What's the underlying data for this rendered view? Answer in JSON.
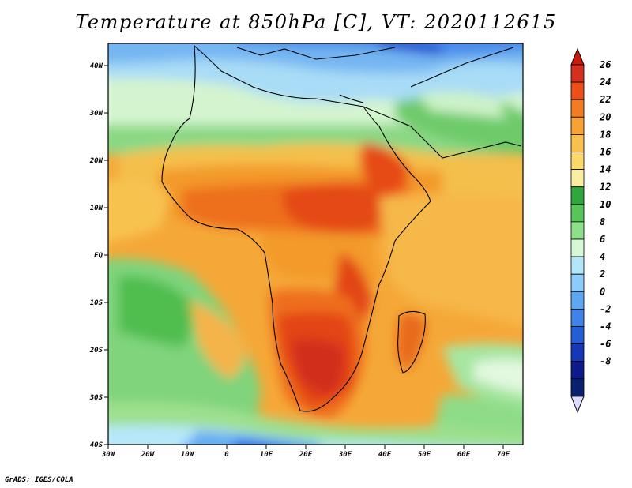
{
  "title": "Temperature at 850hPa [C], VT: 2020112615",
  "credit": "GrADS: IGES/COLA",
  "map": {
    "lon_range": [
      -30,
      75
    ],
    "lat_range": [
      -40,
      45
    ],
    "lon_ticks": [
      "30W",
      "20W",
      "10W",
      "0",
      "10E",
      "20E",
      "30E",
      "40E",
      "50E",
      "60E",
      "70E"
    ],
    "lat_ticks": [
      "40N",
      "30N",
      "20N",
      "10N",
      "EQ",
      "10S",
      "20S",
      "30S",
      "40S"
    ],
    "region": "Africa"
  },
  "colorbar": {
    "labels": [
      "26",
      "24",
      "22",
      "20",
      "18",
      "16",
      "14",
      "12",
      "10",
      "8",
      "6",
      "4",
      "2",
      "0",
      "-2",
      "-4",
      "-6",
      "-8"
    ],
    "colors": [
      "#d5301e",
      "#ee4e18",
      "#f57a20",
      "#f8a234",
      "#f9c04c",
      "#fbd868",
      "#fbeea0",
      "#2ea83c",
      "#56c658",
      "#8ee088",
      "#d6f8d4",
      "#b2e6fa",
      "#8cccfa",
      "#5ca6f2",
      "#3e82ea",
      "#245ed6",
      "#1538b8",
      "#0d1a8c",
      "#082070"
    ],
    "over_color": "#cc1a0e",
    "under_color": "#dcdcff"
  }
}
